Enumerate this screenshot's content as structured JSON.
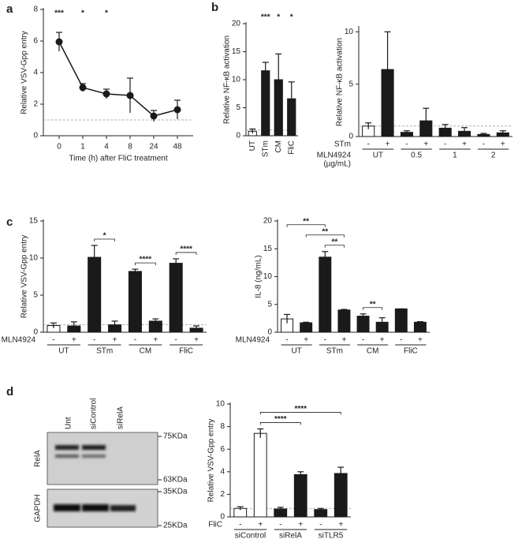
{
  "chart_data": [
    {
      "type": "line",
      "panel": "a",
      "ylabel": "Relative VSV-Gpp entry",
      "xlabel": "Time (h) after FliC treatment",
      "categories": [
        "0",
        "1",
        "4",
        "8",
        "24",
        "48"
      ],
      "values": [
        5.95,
        3.05,
        2.65,
        2.55,
        1.25,
        1.65
      ],
      "errors": [
        0.6,
        0.25,
        0.3,
        1.1,
        0.35,
        0.6
      ],
      "annotations": [
        "***",
        "*",
        "*",
        null,
        null,
        null
      ],
      "color": "#1a1a1a",
      "ylim": [
        0,
        8
      ],
      "yticks": [
        0,
        2,
        4,
        6,
        8
      ],
      "reference_line": 1
    },
    {
      "type": "bar",
      "panel": "b",
      "ylabel": "Relative NF-κB activation",
      "categories": [
        "UT",
        "STm",
        "CM",
        "FliC"
      ],
      "rotated_labels": true,
      "values": [
        0.8,
        11.6,
        10,
        6.6
      ],
      "errors": [
        0.4,
        1.5,
        4.6,
        3.0
      ],
      "annotations": [
        null,
        "***",
        "*",
        "*"
      ],
      "colors": [
        "#ffffff",
        "#1a1a1a",
        "#1a1a1a",
        "#1a1a1a"
      ],
      "ylim": [
        0,
        20
      ],
      "yticks": [
        0,
        5,
        10,
        15,
        20
      ],
      "reference_line": 1
    },
    {
      "type": "bar",
      "ylabel": "Relative NF-κB activation",
      "categories": [
        "-",
        "+",
        "-",
        "+",
        "-",
        "+",
        "-",
        "+"
      ],
      "sublabel_title": "STm",
      "groups": [
        "UT",
        "0.5",
        "1",
        "2"
      ],
      "group_title": [
        "MLN4924",
        "(µg/mL)"
      ],
      "values": [
        1.0,
        6.4,
        0.4,
        1.5,
        0.8,
        0.5,
        0.2,
        0.35
      ],
      "errors": [
        0.3,
        3.6,
        0.15,
        1.2,
        0.35,
        0.35,
        0.1,
        0.2
      ],
      "colors": [
        "#ffffff",
        "#1a1a1a",
        "#1a1a1a",
        "#1a1a1a",
        "#1a1a1a",
        "#1a1a1a",
        "#1a1a1a",
        "#1a1a1a"
      ],
      "ylim": [
        0,
        10.4
      ],
      "yticks": [
        0,
        5,
        10
      ],
      "reference_line": 1
    },
    {
      "type": "bar",
      "panel": "c",
      "ylabel": "Relative VSV-Gpp entry",
      "categories": [
        "-",
        "+",
        "-",
        "+",
        "-",
        "+",
        "-",
        "+"
      ],
      "sublabel_title": "MLN4924",
      "groups": [
        "UT",
        "STm",
        "CM",
        "FliC"
      ],
      "values": [
        0.9,
        0.85,
        10.1,
        1.0,
        8.2,
        1.5,
        9.3,
        0.55
      ],
      "errors": [
        0.35,
        0.55,
        1.6,
        0.5,
        0.3,
        0.3,
        0.6,
        0.3
      ],
      "colors": [
        "#ffffff",
        "#1a1a1a",
        "#1a1a1a",
        "#1a1a1a",
        "#1a1a1a",
        "#1a1a1a",
        "#1a1a1a",
        "#1a1a1a"
      ],
      "brackets": [
        {
          "bars": [
            2,
            3
          ],
          "label": "*"
        },
        {
          "bars": [
            4,
            5
          ],
          "label": "****"
        },
        {
          "bars": [
            6,
            7
          ],
          "label": "****"
        }
      ],
      "ylim": [
        0,
        15
      ],
      "yticks": [
        0,
        5,
        10,
        15
      ],
      "reference_line": 1
    },
    {
      "type": "bar",
      "ylabel": "IL-8 (ng/mL)",
      "categories": [
        "-",
        "+",
        "-",
        "+",
        "-",
        "+",
        "-",
        "+"
      ],
      "sublabel_title": "MLN4924",
      "groups": [
        "UT",
        "STm",
        "CM",
        "FliC"
      ],
      "values": [
        2.4,
        1.7,
        13.5,
        4.0,
        2.9,
        1.8,
        4.2,
        1.8
      ],
      "errors": [
        0.8,
        0.1,
        1.0,
        0.1,
        0.4,
        0.8,
        0,
        0.1
      ],
      "colors": [
        "#ffffff",
        "#1a1a1a",
        "#1a1a1a",
        "#1a1a1a",
        "#1a1a1a",
        "#1a1a1a",
        "#1a1a1a",
        "#1a1a1a"
      ],
      "brackets": [
        {
          "bars": [
            2,
            3
          ],
          "label": "**"
        },
        {
          "bars": [
            1,
            3
          ],
          "label": "**"
        },
        {
          "bars": [
            0,
            2
          ],
          "label": "**"
        },
        {
          "bars": [
            4,
            5
          ],
          "label": "**"
        }
      ],
      "ylim": [
        0,
        20
      ],
      "yticks": [
        0,
        5,
        10,
        15,
        20
      ]
    },
    {
      "type": "bar",
      "panel": "d",
      "ylabel": "Relative VSV-Gpp entry",
      "categories": [
        "-",
        "+",
        "-",
        "+",
        "-",
        "+"
      ],
      "sublabel_title": "FliC",
      "groups": [
        "siControl",
        "siRelA",
        "siTLR5"
      ],
      "values": [
        0.75,
        7.4,
        0.7,
        3.75,
        0.65,
        3.85
      ],
      "errors": [
        0.15,
        0.4,
        0.15,
        0.25,
        0.1,
        0.55
      ],
      "colors": [
        "#ffffff",
        "#ffffff",
        "#1a1a1a",
        "#1a1a1a",
        "#1a1a1a",
        "#1a1a1a"
      ],
      "brackets": [
        {
          "bars": [
            1,
            3
          ],
          "label": "****"
        },
        {
          "bars": [
            1,
            5
          ],
          "label": "****"
        }
      ],
      "ylim": [
        0,
        10
      ],
      "yticks": [
        0,
        2,
        4,
        6,
        8,
        10
      ],
      "reference_line": 0.75
    }
  ],
  "blot": {
    "lanes": [
      "Unt",
      "siControl",
      "siRelA"
    ],
    "blots": [
      {
        "label": "RelA",
        "markers": [
          "75KDa",
          "63KDa"
        ]
      },
      {
        "label": "GAPDH",
        "markers": [
          "35KDa",
          "25KDa"
        ]
      }
    ]
  }
}
